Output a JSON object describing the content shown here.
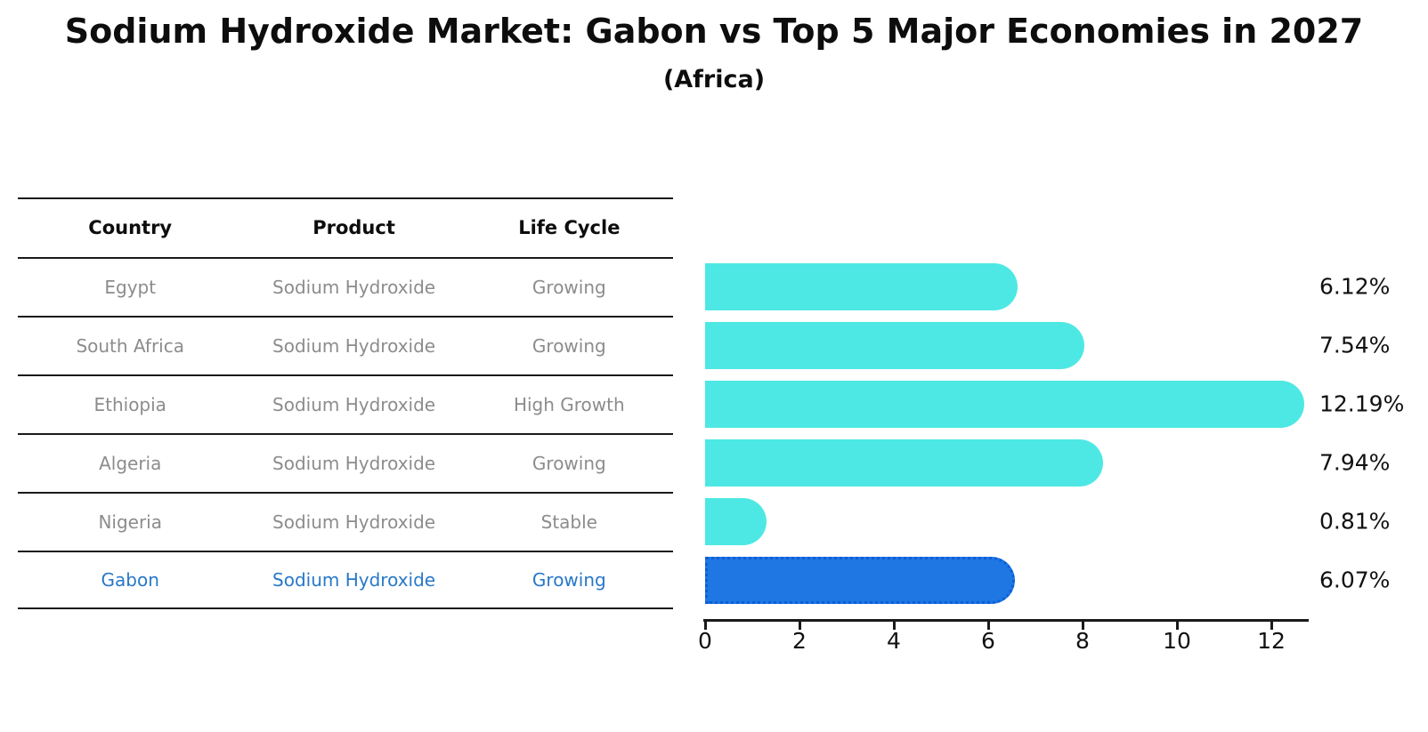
{
  "title": "Sodium Hydroxide Market: Gabon vs Top 5 Major Economies in 2027",
  "subtitle": "(Africa)",
  "table": {
    "headers": [
      "Country",
      "Product",
      "Life Cycle"
    ],
    "rows": [
      {
        "country": "Egypt",
        "product": "Sodium Hydroxide",
        "life_cycle": "Growing",
        "highlight": false
      },
      {
        "country": "South Africa",
        "product": "Sodium Hydroxide",
        "life_cycle": "Growing",
        "highlight": false
      },
      {
        "country": "Ethiopia",
        "product": "Sodium Hydroxide",
        "life_cycle": "High Growth",
        "highlight": false
      },
      {
        "country": "Algeria",
        "product": "Sodium Hydroxide",
        "life_cycle": "Growing",
        "highlight": false
      },
      {
        "country": "Nigeria",
        "product": "Sodium Hydroxide",
        "life_cycle": "Stable",
        "highlight": false
      },
      {
        "country": "Gabon",
        "product": "Sodium Hydroxide",
        "life_cycle": "Growing",
        "highlight": true
      }
    ]
  },
  "chart_data": {
    "type": "bar",
    "orientation": "horizontal",
    "title": "Sodium Hydroxide Market: Gabon vs Top 5 Major Economies in 2027",
    "subtitle": "(Africa)",
    "categories": [
      "Egypt",
      "South Africa",
      "Ethiopia",
      "Algeria",
      "Nigeria",
      "Gabon"
    ],
    "values": [
      6.12,
      7.54,
      12.19,
      7.94,
      0.81,
      6.07
    ],
    "value_labels": [
      "6.12%",
      "7.54%",
      "12.19%",
      "7.94%",
      "0.81%",
      "6.07%"
    ],
    "highlight_category": "Gabon",
    "xticks": [
      0,
      2,
      4,
      6,
      8,
      10,
      12
    ],
    "xlim": [
      0,
      12.8
    ],
    "grid": false,
    "legend": "none",
    "colors": {
      "bar": "#4DE8E4",
      "highlight_bar": "#1E77E3",
      "highlight_border": "#0C5ED6",
      "highlight_text": "#2878C8",
      "text": "#111111",
      "muted_text": "#8C8C8C",
      "axis": "#1A1A1A"
    }
  }
}
